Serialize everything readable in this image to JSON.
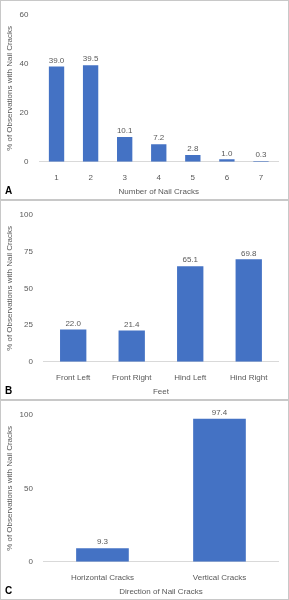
{
  "chart_data": [
    {
      "type": "bar",
      "annotations": [
        "A"
      ],
      "x_label": "Number of Nail Cracks",
      "y_label": "% of Observations with Nail Cracks",
      "categories": [
        "1",
        "2",
        "3",
        "4",
        "5",
        "6",
        "7"
      ],
      "values": [
        39.0,
        39.5,
        10.1,
        7.2,
        2.8,
        1.0,
        0.3
      ],
      "value_labels": [
        "39.0",
        "39.5",
        "10.1",
        "7.2",
        "2.8",
        "1.0",
        "0.3"
      ],
      "color": "#4472c4",
      "ylim": [
        0,
        60
      ],
      "yticks": [
        0,
        20,
        40,
        60
      ],
      "grid": false,
      "data_labels": true
    },
    {
      "type": "bar",
      "annotations": [
        "B"
      ],
      "x_label": "Feet",
      "y_label": "% of Observations with Nail Cracks",
      "categories": [
        "Front Left",
        "Front Right",
        "Hind Left",
        "Hind Right"
      ],
      "values": [
        22.0,
        21.4,
        65.1,
        69.8
      ],
      "value_labels": [
        "22.0",
        "21.4",
        "65.1",
        "69.8"
      ],
      "color": "#4472c4",
      "ylim": [
        0,
        100
      ],
      "yticks": [
        0,
        25,
        50,
        75,
        100
      ],
      "grid": false,
      "data_labels": true
    },
    {
      "type": "bar",
      "annotations": [
        "C"
      ],
      "x_label": "Direction of Nail Cracks",
      "y_label": "% of Observations with Nail Cracks",
      "categories": [
        "Horizontal Cracks",
        "Vertical Cracks"
      ],
      "values": [
        9.3,
        97.4
      ],
      "value_labels": [
        "9.3",
        "97.4"
      ],
      "color": "#4472c4",
      "ylim": [
        0,
        100
      ],
      "yticks": [
        0,
        50,
        100
      ],
      "grid": false,
      "data_labels": true
    }
  ]
}
